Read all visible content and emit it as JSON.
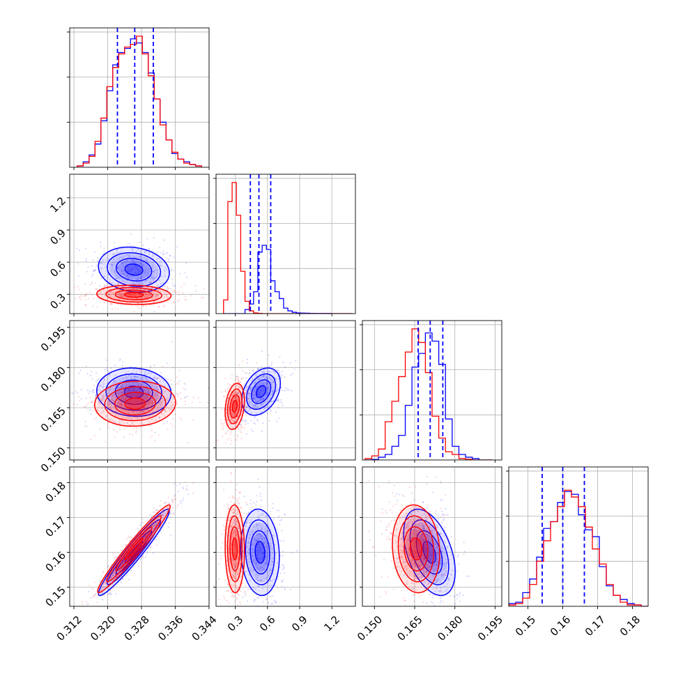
{
  "chart_data": {
    "type": "corner",
    "grid": true,
    "colors": {
      "blue": "#0000ff",
      "red": "#ff0000",
      "grid": "#b0b0b0"
    },
    "series": [
      {
        "color": "blue",
        "quantile_lines": "dashed"
      },
      {
        "color": "red"
      }
    ],
    "parameters": [
      {
        "range": [
          0.311,
          0.344
        ],
        "ticks": [
          "0.312",
          "0.320",
          "0.328",
          "0.336",
          "0.344"
        ],
        "tick_values": [
          0.312,
          0.32,
          0.328,
          0.336,
          0.344
        ]
      },
      {
        "range": [
          0.12,
          1.42
        ],
        "ticks": [
          "0.3",
          "0.6",
          "0.9",
          "1.2"
        ],
        "tick_values": [
          0.3,
          0.6,
          0.9,
          1.2
        ]
      },
      {
        "range": [
          0.1455,
          0.1975
        ],
        "ticks": [
          "0.150",
          "0.165",
          "0.180",
          "0.195"
        ],
        "tick_values": [
          0.15,
          0.165,
          0.18,
          0.195
        ]
      },
      {
        "range": [
          0.1445,
          0.1845
        ],
        "ticks": [
          "0.15",
          "0.16",
          "0.17",
          "0.18"
        ],
        "tick_values": [
          0.15,
          0.16,
          0.17,
          0.18
        ]
      }
    ],
    "diagonal_histograms": [
      {
        "bin_edges": [
          0.3128,
          0.3142,
          0.3156,
          0.317,
          0.3184,
          0.3198,
          0.3212,
          0.3226,
          0.324,
          0.3254,
          0.3268,
          0.3282,
          0.3296,
          0.331,
          0.3324,
          0.3338,
          0.3352,
          0.3366,
          0.338,
          0.3394,
          0.3408,
          0.3422
        ],
        "blue": [
          0.01,
          0.04,
          0.09,
          0.17,
          0.34,
          0.56,
          0.75,
          0.84,
          0.87,
          0.94,
          0.91,
          0.84,
          0.69,
          0.5,
          0.33,
          0.2,
          0.1,
          0.06,
          0.04,
          0.02,
          0.01
        ],
        "red": [
          0.01,
          0.03,
          0.08,
          0.19,
          0.36,
          0.59,
          0.73,
          0.83,
          0.88,
          0.9,
          0.96,
          0.83,
          0.67,
          0.5,
          0.31,
          0.2,
          0.11,
          0.06,
          0.03,
          0.02,
          0.01
        ],
        "blue_quantiles": [
          0.3223,
          0.3264,
          0.3308
        ]
      },
      {
        "bin_edges": [
          0.19,
          0.23,
          0.27,
          0.31,
          0.35,
          0.39,
          0.43,
          0.47,
          0.51,
          0.55,
          0.59,
          0.63,
          0.67,
          0.71,
          0.75,
          0.79,
          0.83,
          0.87,
          0.91,
          0.95,
          0.99,
          1.03,
          1.07,
          1.11,
          1.15,
          1.19,
          1.23,
          1.27,
          1.31,
          1.35,
          1.39
        ],
        "blue": [
          0.0,
          0.0,
          0.0,
          0.0,
          0.0,
          0.03,
          0.07,
          0.16,
          0.45,
          0.5,
          0.47,
          0.24,
          0.16,
          0.11,
          0.04,
          0.02,
          0.01,
          0.005,
          0.004,
          0.003,
          0.002,
          0.001,
          0.001,
          0.001,
          0.001,
          0.0,
          0.0,
          0.0,
          0.0,
          0.0
        ],
        "red": [
          0.1,
          0.82,
          0.96,
          0.72,
          0.31,
          0.09,
          0.02,
          0.005,
          0.002,
          0.0,
          0.0,
          0.0,
          0.0,
          0.0,
          0.0,
          0.0,
          0.0,
          0.0,
          0.0,
          0.0,
          0.0,
          0.0,
          0.0,
          0.0,
          0.0,
          0.0,
          0.0,
          0.0,
          0.0,
          0.0
        ],
        "blue_quantiles": [
          0.44,
          0.52,
          0.63
        ]
      },
      {
        "bin_edges": [
          0.1465,
          0.149,
          0.1515,
          0.154,
          0.1565,
          0.159,
          0.1615,
          0.164,
          0.1665,
          0.169,
          0.1715,
          0.174,
          0.1765,
          0.179,
          0.1815,
          0.184,
          0.1865,
          0.189,
          0.1915,
          0.194
        ],
        "blue": [
          0.0,
          0.004,
          0.02,
          0.04,
          0.1,
          0.18,
          0.4,
          0.68,
          0.78,
          0.93,
          0.87,
          0.7,
          0.3,
          0.1,
          0.04,
          0.02,
          0.01,
          0.0,
          0.0
        ],
        "red": [
          0.01,
          0.03,
          0.08,
          0.28,
          0.43,
          0.61,
          0.79,
          0.96,
          0.86,
          0.64,
          0.32,
          0.16,
          0.06,
          0.04,
          0.01,
          0.005,
          0.0,
          0.0,
          0.0
        ],
        "blue_quantiles": [
          0.1663,
          0.1708,
          0.1755
        ]
      },
      {
        "bin_edges": [
          0.1445,
          0.1465,
          0.1485,
          0.1505,
          0.1525,
          0.1545,
          0.1565,
          0.1585,
          0.1605,
          0.1625,
          0.1645,
          0.1665,
          0.1685,
          0.1705,
          0.1725,
          0.1745,
          0.1765,
          0.1785,
          0.1805,
          0.1825,
          0.1845
        ],
        "blue": [
          0.02,
          0.03,
          0.1,
          0.2,
          0.36,
          0.57,
          0.62,
          0.76,
          0.84,
          0.82,
          0.67,
          0.56,
          0.51,
          0.29,
          0.15,
          0.08,
          0.05,
          0.02,
          0.01,
          0.0
        ],
        "red": [
          0.01,
          0.02,
          0.06,
          0.16,
          0.33,
          0.48,
          0.62,
          0.73,
          0.85,
          0.8,
          0.73,
          0.58,
          0.42,
          0.31,
          0.16,
          0.08,
          0.03,
          0.01,
          0.01,
          0.0
        ],
        "blue_quantiles": [
          0.1541,
          0.16,
          0.1662
        ]
      }
    ],
    "panels_2d": [
      {
        "row": 1,
        "col": 0,
        "blue": {
          "mean": [
            0.3262,
            0.53
          ],
          "sd": [
            0.0042,
            0.105
          ],
          "rho": -0.15
        },
        "red": {
          "mean": [
            0.3262,
            0.295
          ],
          "sd": [
            0.0044,
            0.045
          ],
          "rho": -0.1
        }
      },
      {
        "row": 2,
        "col": 0,
        "blue": {
          "mean": [
            0.3262,
            0.1708
          ],
          "sd": [
            0.0044,
            0.0045
          ],
          "rho": -0.05
        },
        "red": {
          "mean": [
            0.3265,
            0.1665
          ],
          "sd": [
            0.0048,
            0.0042
          ],
          "rho": 0.05
        }
      },
      {
        "row": 2,
        "col": 1,
        "blue": {
          "mean": [
            0.54,
            0.171
          ],
          "sd": [
            0.09,
            0.0044
          ],
          "rho": 0.35
        },
        "red": {
          "mean": [
            0.295,
            0.1655
          ],
          "sd": [
            0.045,
            0.0043
          ],
          "rho": 0.25
        }
      },
      {
        "row": 3,
        "col": 0,
        "blue": {
          "mean": [
            0.3262,
            0.16
          ],
          "sd": [
            0.0042,
            0.0062
          ],
          "rho": 0.96
        },
        "red": {
          "mean": [
            0.3262,
            0.161
          ],
          "sd": [
            0.0043,
            0.0063
          ],
          "rho": 0.97
        }
      },
      {
        "row": 3,
        "col": 1,
        "blue": {
          "mean": [
            0.53,
            0.16
          ],
          "sd": [
            0.09,
            0.0062
          ],
          "rho": -0.1
        },
        "red": {
          "mean": [
            0.295,
            0.161
          ],
          "sd": [
            0.045,
            0.0063
          ],
          "rho": -0.05
        }
      },
      {
        "row": 3,
        "col": 2,
        "blue": {
          "mean": [
            0.1705,
            0.16
          ],
          "sd": [
            0.0048,
            0.0062
          ],
          "rho": -0.45
        },
        "red": {
          "mean": [
            0.1655,
            0.161
          ],
          "sd": [
            0.0044,
            0.0063
          ],
          "rho": -0.1
        }
      }
    ]
  }
}
